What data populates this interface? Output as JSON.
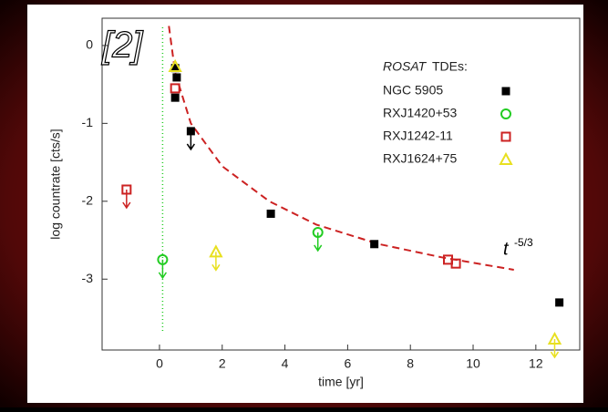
{
  "chart_data": {
    "type": "scatter",
    "x_label": "time [yr]",
    "y_label": "log countrate [cts/s]",
    "reference": "[2]",
    "legend_title_italic": "ROSAT",
    "legend_title": "TDEs:",
    "legend_position": "upper right",
    "xlim": [
      -1.83,
      13.4
    ],
    "xticks": [
      0,
      2,
      4,
      6,
      8,
      10,
      12
    ],
    "ylim": [
      -3.91,
      0.35
    ],
    "yticks": [
      0,
      -1,
      -2,
      -3
    ],
    "series": [
      {
        "name": "NGC 5905",
        "color": "#000000",
        "marker": "filled-square",
        "x": [
          0.5,
          0.55,
          0.5,
          1.0,
          3.55,
          6.85,
          12.75
        ],
        "values": [
          -0.29,
          -0.41,
          -0.67,
          -1.1,
          -2.16,
          -2.55,
          -3.3
        ],
        "upper_limit": [
          false,
          false,
          false,
          true,
          false,
          false,
          false
        ]
      },
      {
        "name": "RXJ1420+53",
        "color": "#22cc22",
        "marker": "circle",
        "x": [
          0.1,
          5.05
        ],
        "values": [
          -2.75,
          -2.4
        ],
        "upper_limit": [
          true,
          true
        ]
      },
      {
        "name": "RXJ1242-11",
        "color": "#cc2222",
        "marker": "square",
        "x": [
          -1.05,
          0.5,
          9.2,
          9.45
        ],
        "values": [
          -1.85,
          -0.55,
          -2.75,
          -2.8
        ],
        "upper_limit": [
          true,
          false,
          false,
          false
        ]
      },
      {
        "name": "RXJ1624+75",
        "color": "#e8e020",
        "marker": "triangle",
        "x": [
          0.5,
          1.8,
          12.6
        ],
        "values": [
          -0.27,
          -2.65,
          -3.77
        ],
        "upper_limit": [
          false,
          true,
          true
        ]
      }
    ],
    "model": {
      "label": "t",
      "exponent_label": "-5/3",
      "color": "#cc2222",
      "x": [
        0.3,
        0.5,
        1,
        2,
        3.5,
        5,
        7,
        9,
        11.3
      ],
      "values": [
        0.25,
        -0.35,
        -1.0,
        -1.55,
        -2.0,
        -2.3,
        -2.55,
        -2.72,
        -2.88
      ]
    },
    "vertical_line": {
      "x": 0.1,
      "color": "#22cc22"
    }
  }
}
